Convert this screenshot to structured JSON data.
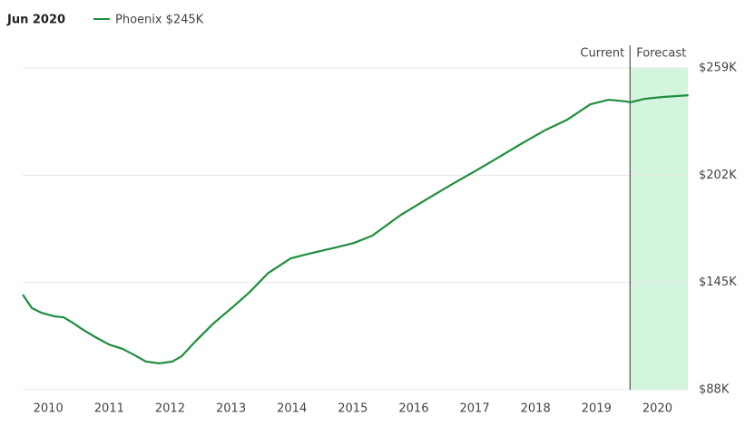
{
  "chart_data": {
    "type": "line",
    "header": "Jun 2020",
    "legend_value": "$245K",
    "current_label": "Current",
    "forecast_label": "Forecast",
    "forecast_start": 2019.55,
    "forecast_color": "#d3f5dd",
    "x": [
      2009.58,
      2009.73,
      2009.88,
      2010.1,
      2010.25,
      2010.4,
      2010.55,
      2010.77,
      2011,
      2011.22,
      2011.45,
      2011.6,
      2011.82,
      2012.04,
      2012.19,
      2012.41,
      2012.71,
      2013.01,
      2013.31,
      2013.61,
      2013.98,
      2014.28,
      2014.72,
      2015.02,
      2015.32,
      2015.77,
      2016.21,
      2016.66,
      2017.03,
      2017.41,
      2017.78,
      2018.15,
      2018.52,
      2018.9,
      2019.2,
      2019.49,
      2019.55,
      2019.79,
      2020.09,
      2020.51
    ],
    "series": [
      {
        "name": "Phoenix",
        "color": "#1e8e3e",
        "values": [
          138.6,
          131.4,
          129,
          127,
          126.5,
          123.6,
          120.3,
          116,
          112,
          109.7,
          105.8,
          103,
          102,
          103,
          105.8,
          113.5,
          123.2,
          131.4,
          140,
          150,
          157.8,
          160.3,
          163.6,
          166,
          169.9,
          180.5,
          189.2,
          197.8,
          204.6,
          211.8,
          219,
          225.8,
          231.5,
          239.7,
          242.1,
          241.2,
          240.7,
          242.6,
          243.6,
          244.5
        ]
      }
    ],
    "xlim": [
      2009.58,
      2020.5
    ],
    "xticks": [
      2010,
      2011,
      2012,
      2013,
      2014,
      2015,
      2016,
      2017,
      2018,
      2019,
      2020
    ],
    "ylim": [
      88,
      259
    ],
    "yticks": [
      {
        "value": 88,
        "label": "$88K"
      },
      {
        "value": 145,
        "label": "$145K"
      },
      {
        "value": 202,
        "label": "$202K"
      },
      {
        "value": 259,
        "label": "$259K"
      }
    ],
    "grid": true
  }
}
